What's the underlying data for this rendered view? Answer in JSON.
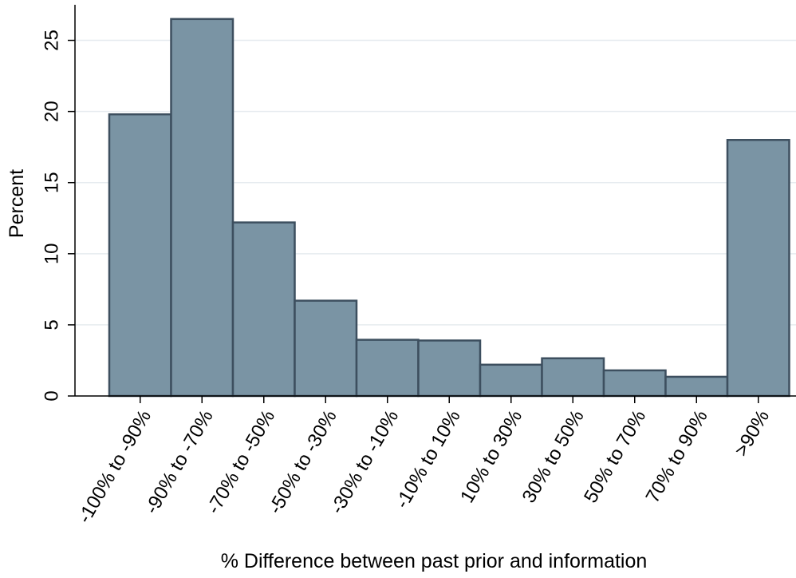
{
  "chart_data": {
    "type": "bar",
    "title": "",
    "xlabel": "% Difference between past prior and information",
    "ylabel": "Percent",
    "categories": [
      "-100% to -90%",
      "-90% to -70%",
      "-70% to -50%",
      "-50% to -30%",
      "-30% to -10%",
      "-10% to 10%",
      "10% to 30%",
      "30% to 50%",
      "50% to 70%",
      "70% to 90%",
      ">90%"
    ],
    "values": [
      19.8,
      26.5,
      12.2,
      6.7,
      3.95,
      3.9,
      2.2,
      2.65,
      1.8,
      1.35,
      18.0
    ],
    "ylim": [
      0,
      27.5
    ],
    "yticks": [
      0,
      5,
      10,
      15,
      20,
      25
    ],
    "ytick_labels": [
      "0",
      "5",
      "10",
      "15",
      "20",
      "25"
    ],
    "grid": true,
    "colors": {
      "bar_fill": "#7a94a4",
      "bar_edge": "#3d4f5f",
      "grid": "#e6ebef"
    }
  }
}
